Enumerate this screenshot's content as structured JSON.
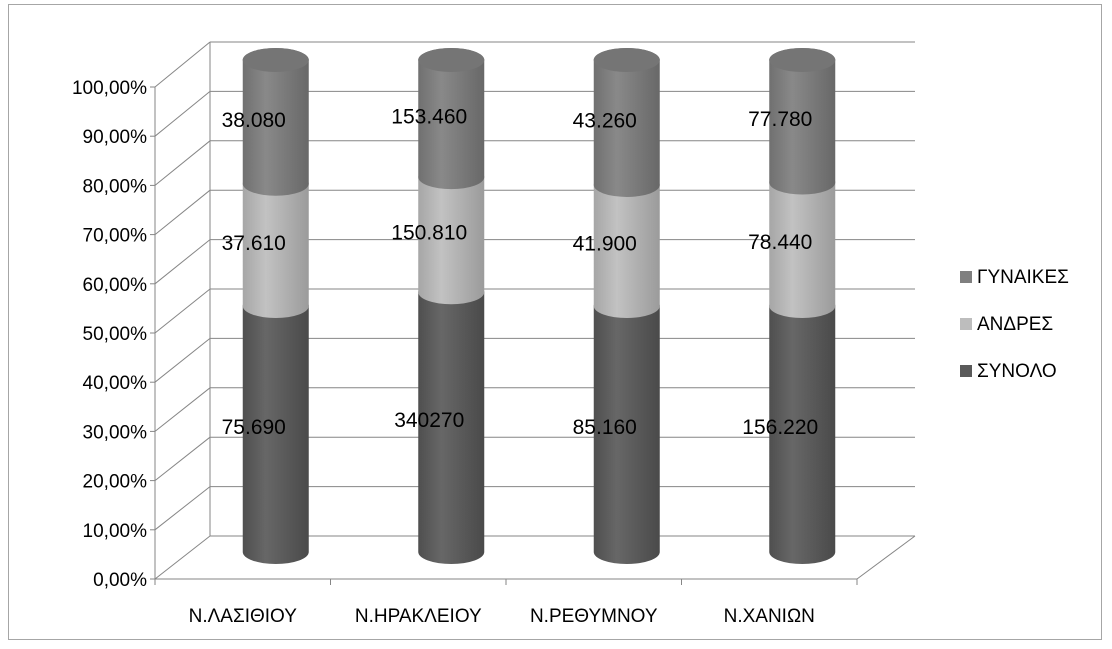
{
  "chart_data": {
    "type": "bar",
    "subtype": "stacked-100-percent-cylinder-3d",
    "categories": [
      "Ν.ΛΑΣΙΘΙΟΥ",
      "Ν.ΗΡΑΚΛΕΙΟΥ",
      "Ν.ΡΕΘΥΜΝΟΥ",
      "Ν.ΧΑΝΙΩΝ"
    ],
    "series": [
      {
        "name": "ΣΥΝΟΛΟ",
        "values": [
          75690,
          340270,
          85160,
          156220
        ],
        "labels": [
          "75.690",
          "340270",
          "85.160",
          "156.220"
        ],
        "color": "#5a5a5a"
      },
      {
        "name": "ΑΝΔΡΕΣ",
        "values": [
          37610,
          150810,
          41900,
          78440
        ],
        "labels": [
          "37.610",
          "150.810",
          "41.900",
          "78.440"
        ],
        "color": "#bdbdbd"
      },
      {
        "name": "ΓΥΝΑΙΚΕΣ",
        "values": [
          38080,
          153460,
          43260,
          77780
        ],
        "labels": [
          "38.080",
          "153.460",
          "43.260",
          "77.780"
        ],
        "color": "#7f7f7f"
      }
    ],
    "yticks": [
      "0,00%",
      "10,00%",
      "20,00%",
      "30,00%",
      "40,00%",
      "50,00%",
      "60,00%",
      "70,00%",
      "80,00%",
      "90,00%",
      "100,00%"
    ],
    "ylim": [
      0,
      100
    ],
    "grid": true,
    "legend_position": "right",
    "legend_order": [
      "ΓΥΝΑΙΚΕΣ",
      "ΑΝΔΡΕΣ",
      "ΣΥΝΟΛΟ"
    ]
  }
}
